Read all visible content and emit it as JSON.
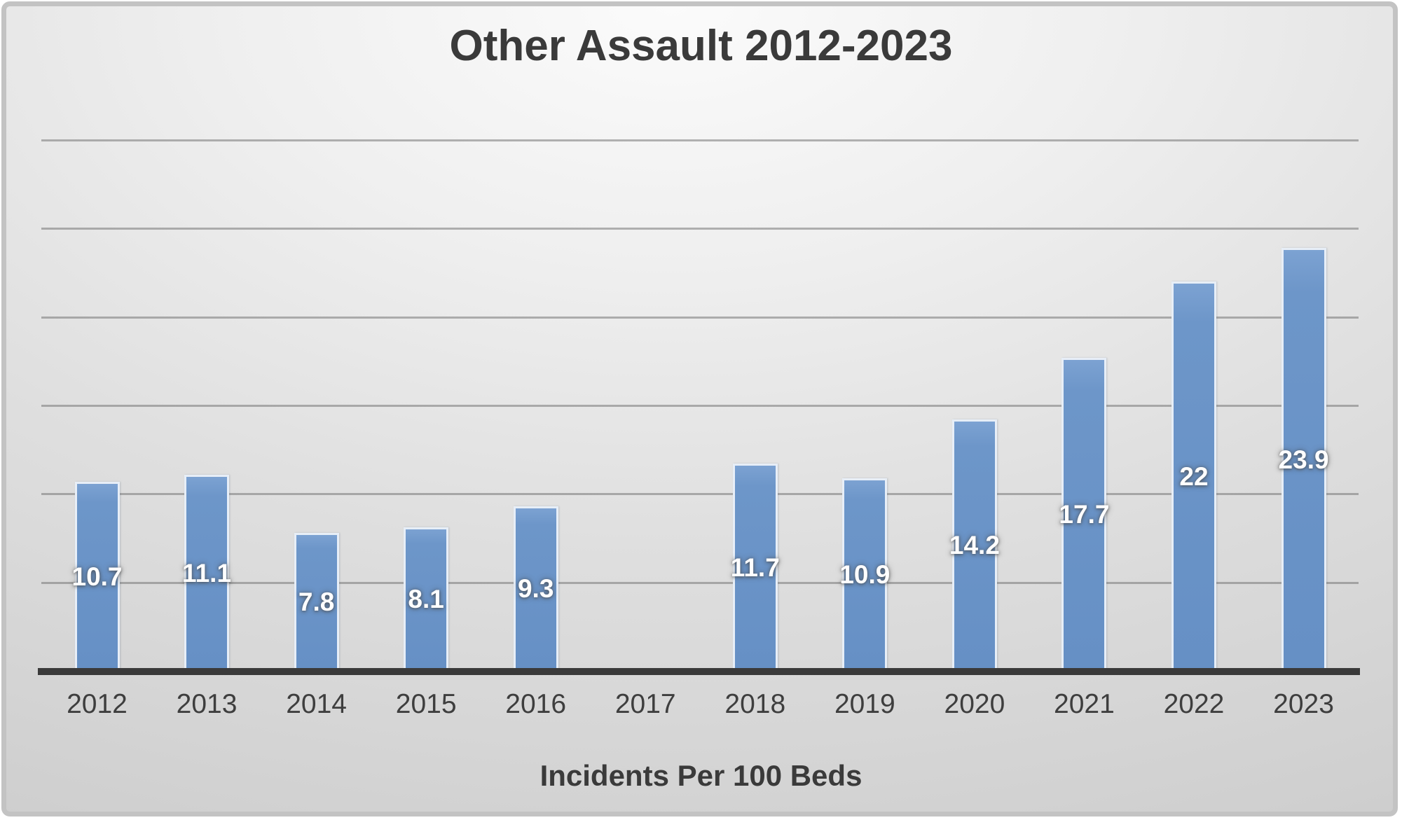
{
  "chart_data": {
    "type": "bar",
    "title": "Other Assault 2012-2023",
    "xlabel": "Incidents Per 100 Beds",
    "ylabel": "",
    "categories": [
      "2012",
      "2013",
      "2014",
      "2015",
      "2016",
      "2017",
      "2018",
      "2019",
      "2020",
      "2021",
      "2022",
      "2023"
    ],
    "values": [
      10.7,
      11.1,
      7.8,
      8.1,
      9.3,
      null,
      11.7,
      10.9,
      14.2,
      17.7,
      22,
      23.9
    ],
    "data_labels": [
      "10.7",
      "11.1",
      "7.8",
      "8.1",
      "9.3",
      null,
      "11.7",
      "10.9",
      "14.2",
      "17.7",
      "22",
      "23.9"
    ],
    "ylim": [
      0,
      30
    ],
    "grid_step": 5,
    "grid": "horizontal",
    "y_tick_labels_shown": false,
    "legend": false,
    "bar_color": "#6b94c8",
    "bar_border_color": "#e7eef7",
    "data_label_color": "#ffffff",
    "grid_color": "#a6a6a6",
    "axis_color": "#3a3a3a",
    "text_color": "#3e3e3e",
    "frame_border_color": "#c3c3c3"
  }
}
